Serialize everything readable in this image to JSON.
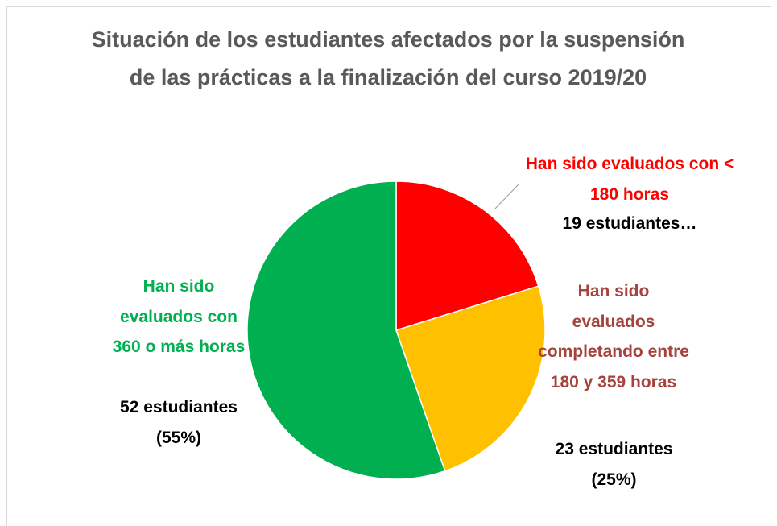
{
  "chart_data": {
    "type": "pie",
    "title": "Situación de los estudiantes afectados por la suspensión de las prácticas a la finalización del curso 2019/20",
    "categories": [
      "Han sido evaluados con < 180 horas",
      "Han sido evaluados completando entre 180 y 359 horas",
      "Han sido evaluados con 360 o más horas"
    ],
    "values": [
      19,
      23,
      52
    ],
    "value_labels": [
      "19 estudiantes…",
      "23 estudiantes (25%)",
      "52 estudiantes (55%)"
    ],
    "colors": [
      "#ff0000",
      "#ffc000",
      "#00b050"
    ],
    "label_colors": [
      "#ff0000",
      "#a5433c",
      "#00b050"
    ]
  }
}
